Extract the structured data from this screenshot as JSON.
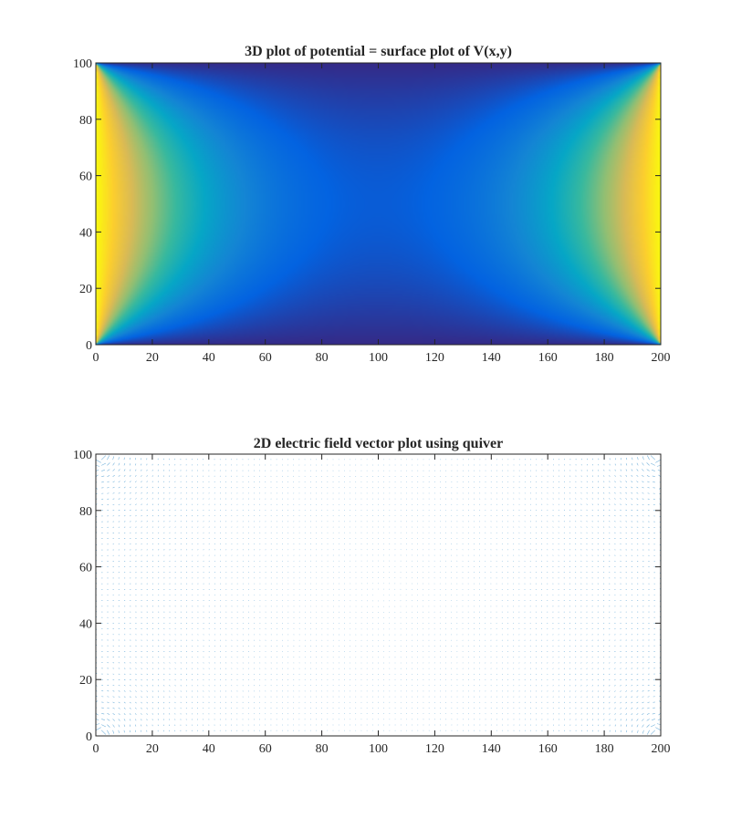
{
  "chart_data": [
    {
      "type": "heatmap",
      "title": "3D plot of potential = surface plot of V(x,y)",
      "xlabel": "",
      "ylabel": "",
      "xlim": [
        0,
        200
      ],
      "ylim": [
        0,
        100
      ],
      "xticks": [
        "0",
        "20",
        "40",
        "60",
        "80",
        "100",
        "120",
        "140",
        "160",
        "180",
        "200"
      ],
      "yticks": [
        "0",
        "20",
        "40",
        "60",
        "80",
        "100"
      ],
      "boundary": {
        "left": 1,
        "right": 1,
        "top": 0,
        "bottom": 0
      },
      "colormap": "parula",
      "colormap_stops": [
        "#352a87",
        "#0363e1",
        "#1485d4",
        "#06a7c6",
        "#38b99e",
        "#92bf73",
        "#d9ba56",
        "#fcce2e",
        "#f9fb0e"
      ]
    },
    {
      "type": "quiver",
      "title": "2D electric field vector plot using quiver",
      "xlabel": "",
      "ylabel": "",
      "xlim": [
        0,
        200
      ],
      "ylim": [
        0,
        100
      ],
      "xticks": [
        "0",
        "20",
        "40",
        "60",
        "80",
        "100",
        "120",
        "140",
        "160",
        "180",
        "200"
      ],
      "yticks": [
        "0",
        "20",
        "40",
        "60",
        "80",
        "100"
      ],
      "arrow_color": "#0072bd"
    }
  ]
}
